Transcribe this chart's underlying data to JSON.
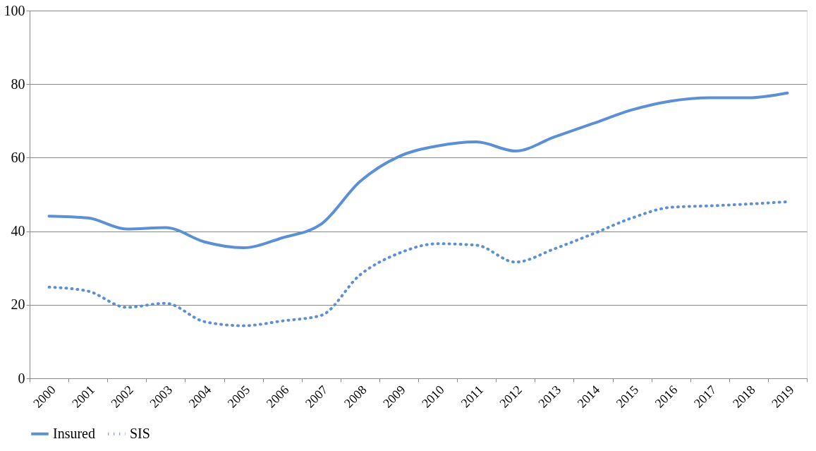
{
  "chart_data": {
    "type": "line",
    "categories": [
      "2000",
      "2001",
      "2002",
      "2003",
      "2004",
      "2005",
      "2006",
      "2007",
      "2008",
      "2009",
      "2010",
      "2011",
      "2012",
      "2013",
      "2014",
      "2015",
      "2016",
      "2017",
      "2018",
      "2019"
    ],
    "series": [
      {
        "name": "Insured",
        "color": "#5b8fd6",
        "line_style": "solid",
        "values": [
          44.1,
          43.6,
          40.6,
          41.0,
          37.1,
          35.5,
          38.2,
          41.9,
          53.5,
          60.3,
          63.2,
          64.3,
          61.8,
          65.6,
          69.3,
          73.0,
          75.4,
          76.3,
          76.3,
          77.6
        ]
      },
      {
        "name": "SIS",
        "color": "#5b8fd6",
        "line_style": "dotted",
        "values": [
          24.8,
          23.7,
          19.3,
          20.4,
          15.4,
          14.3,
          15.6,
          17.1,
          28.1,
          34.0,
          36.6,
          36.2,
          31.6,
          35.2,
          39.3,
          43.6,
          46.5,
          46.9,
          47.4,
          48.0
        ]
      }
    ],
    "ylim": [
      0,
      100
    ],
    "yticks": [
      0,
      20,
      40,
      60,
      80,
      100
    ],
    "grid": "y",
    "legend": "bottom",
    "marker": "none"
  }
}
